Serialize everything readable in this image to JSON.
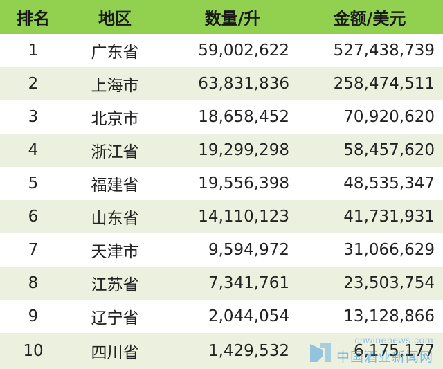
{
  "header": {
    "rank": "排名",
    "region": "地区",
    "quantity": "数量/升",
    "amount": "金额/美元"
  },
  "rows": [
    {
      "rank": "1",
      "region": "广东省",
      "quantity": "59,002,622",
      "amount": "527,438,739"
    },
    {
      "rank": "2",
      "region": "上海市",
      "quantity": "63,831,836",
      "amount": "258,474,511"
    },
    {
      "rank": "3",
      "region": "北京市",
      "quantity": "18,658,452",
      "amount": "70,920,620"
    },
    {
      "rank": "4",
      "region": "浙江省",
      "quantity": "19,299,298",
      "amount": "58,457,620"
    },
    {
      "rank": "5",
      "region": "福建省",
      "quantity": "19,556,398",
      "amount": "48,535,347"
    },
    {
      "rank": "6",
      "region": "山东省",
      "quantity": "14,110,123",
      "amount": "41,731,931"
    },
    {
      "rank": "7",
      "region": "天津市",
      "quantity": "9,594,972",
      "amount": "31,066,629"
    },
    {
      "rank": "8",
      "region": "江苏省",
      "quantity": "7,341,761",
      "amount": "23,503,754"
    },
    {
      "rank": "9",
      "region": "辽宁省",
      "quantity": "2,044,054",
      "amount": "13,128,866"
    },
    {
      "rank": "10",
      "region": "四川省",
      "quantity": "1,429,532",
      "amount": "6,175,177"
    }
  ],
  "colors": {
    "header_bg": "#92d050",
    "row_alt_bg": "#ebf1de",
    "row_bg": "#ffffff"
  },
  "watermark": {
    "url": "cnwinenews.com",
    "name": "中国酒业新闻网",
    "icon": "site-logo-icon"
  }
}
